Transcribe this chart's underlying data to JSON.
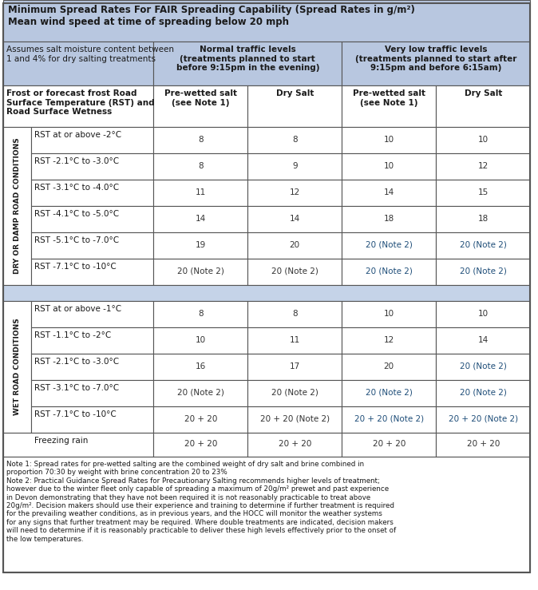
{
  "title_line1": "Minimum Spread Rates For FAIR Spreading Capability (Spread Rates in g/m²)",
  "title_line2": "Mean wind speed at time of spreading below 20 mph",
  "header_bg": "#b8c7e0",
  "white_bg": "#ffffff",
  "separator_bg": "#c5d3e8",
  "col1_header": "Assumes salt moisture content between\n1 and 4% for dry salting treatments",
  "col2_header": "Normal traffic levels\n(treatments planned to start\nbefore 9:15pm in the evening)",
  "col3_header": "Very low traffic levels\n(treatments planned to start after\n9:15pm and before 6:15am)",
  "subheader_col1": "Frost or forecast frost Road\nSurface Temperature (RST) and\nRoad Surface Wetness",
  "subheader_col2": "Pre-wetted salt\n(see Note 1)",
  "subheader_col3": "Dry Salt",
  "subheader_col4": "Pre-wetted salt\n(see Note 1)",
  "subheader_col5": "Dry Salt",
  "dry_label": "DRY OR DAMP ROAD CONDITIONS",
  "wet_label": "WET ROAD CONDITIONS",
  "dry_rows": [
    [
      "RST at or above -2°C",
      "8",
      "8",
      "10",
      "10"
    ],
    [
      "RST -2.1°C to -3.0°C",
      "8",
      "9",
      "10",
      "12"
    ],
    [
      "RST -3.1°C to -4.0°C",
      "11",
      "12",
      "14",
      "15"
    ],
    [
      "RST -4.1°C to -5.0°C",
      "14",
      "14",
      "18",
      "18"
    ],
    [
      "RST -5.1°C to -7.0°C",
      "19",
      "20",
      "20 (Note 2)",
      "20 (Note 2)"
    ],
    [
      "RST -7.1°C to -10°C",
      "20 (Note 2)",
      "20 (Note 2)",
      "20 (Note 2)",
      "20 (Note 2)"
    ]
  ],
  "wet_rows": [
    [
      "RST at or above -1°C",
      "8",
      "8",
      "10",
      "10"
    ],
    [
      "RST -1.1°C to -2°C",
      "10",
      "11",
      "12",
      "14"
    ],
    [
      "RST -2.1°C to -3.0°C",
      "16",
      "17",
      "20",
      "20 (Note 2)"
    ],
    [
      "RST -3.1°C to -7.0°C",
      "20 (Note 2)",
      "20 (Note 2)",
      "20 (Note 2)",
      "20 (Note 2)"
    ],
    [
      "RST -7.1°C to -10°C",
      "20 + 20",
      "20 + 20 (Note 2)",
      "20 + 20 (Note 2)",
      "20 + 20 (Note 2)"
    ]
  ],
  "freezing_row": [
    "Freezing rain",
    "20 + 20",
    "20 + 20",
    "20 + 20",
    "20 + 20"
  ],
  "note1": "Note 1: Spread rates for pre-wetted salting are the combined weight of dry salt and brine combined in\nproportion 70:30 by weight with brine concentration 20 to 23%",
  "note2": "Note 2: Practical Guidance Spread Rates for Precautionary Salting recommends higher levels of treatment;\nhowever due to the winter fleet only capable of spreading a maximum of 20g/m² prewet and past experience\nin Devon demonstrating that they have not been required it is not reasonably practicable to treat above\n20g/m². Decision makers should use their experience and training to determine if further treatment is required\nfor the prevailing weather conditions, as in previous years, and the HOCC will monitor the weather systems\nfor any signs that further treatment may be required. Where double treatments are indicated, decision makers\nwill need to determine if it is reasonably practicable to deliver these high levels effectively prior to the onset of\nthe low temperatures.",
  "border_color": "#555555",
  "text_dark": "#1a1a1a",
  "blue_text": "#1f4e79",
  "cell_text": "#333333"
}
